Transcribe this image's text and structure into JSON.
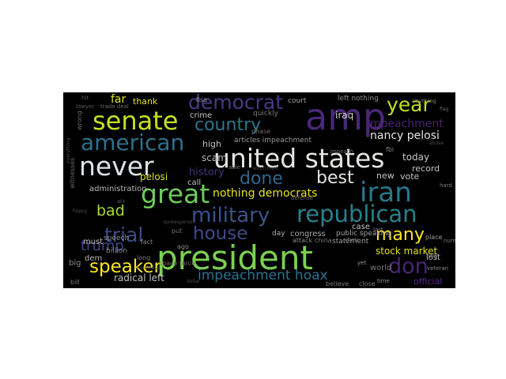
{
  "wordcloud": {
    "words": [
      {
        "text": "president",
        "color": "#7ad151"
      },
      {
        "text": "amp",
        "color": "#482878"
      },
      {
        "text": "united states",
        "color": "#e5e4e0"
      },
      {
        "text": "great",
        "color": "#6ccd5a"
      },
      {
        "text": "never",
        "color": "#dbe3e6"
      },
      {
        "text": "iran",
        "color": "#2a788e"
      },
      {
        "text": "senate",
        "color": "#c7e020"
      },
      {
        "text": "military",
        "color": "#3b528b"
      },
      {
        "text": "republican",
        "color": "#26828e"
      },
      {
        "text": "american",
        "color": "#2c718e"
      },
      {
        "text": "democrat",
        "color": "#443a83"
      },
      {
        "text": "country",
        "color": "#2a768e"
      },
      {
        "text": "house",
        "color": "#3e4a89"
      },
      {
        "text": "trial",
        "color": "#3e4c8a"
      },
      {
        "text": "don",
        "color": "#482475"
      },
      {
        "text": "year",
        "color": "#bddf26"
      },
      {
        "text": "done",
        "color": "#31668e"
      },
      {
        "text": "best",
        "color": "#e4e5e2"
      },
      {
        "text": "speaker",
        "color": "#fde725"
      },
      {
        "text": "many",
        "color": "#fde725"
      },
      {
        "text": "impeachment hoax",
        "color": "#2c728e"
      },
      {
        "text": "trump",
        "color": "#3f4889"
      },
      {
        "text": "bad",
        "color": "#a8db34"
      },
      {
        "text": "nancy pelosi",
        "color": "#e5e5e5"
      },
      {
        "text": "impeachment",
        "color": "#482173"
      },
      {
        "text": "nothing democrats",
        "color": "#e7e419"
      },
      {
        "text": "far",
        "color": "#dfe318"
      },
      {
        "text": "thank",
        "color": "#e3e419"
      },
      {
        "text": "stock market",
        "color": "#e5e419"
      },
      {
        "text": "radical left",
        "color": "#c3c3c3"
      },
      {
        "text": "history",
        "color": "#46337f"
      },
      {
        "text": "pelosi",
        "color": "#d8e219"
      },
      {
        "text": "iraq",
        "color": "#d1d1d1"
      },
      {
        "text": "crime",
        "color": "#c9c9c9"
      },
      {
        "text": "high",
        "color": "#c0c0c0"
      },
      {
        "text": "scam",
        "color": "#b7b7b7"
      },
      {
        "text": "today",
        "color": "#c9c9c9"
      },
      {
        "text": "record",
        "color": "#c4c4c4"
      },
      {
        "text": "new",
        "color": "#c7c7c7"
      },
      {
        "text": "vote",
        "color": "#c8c8c8"
      },
      {
        "text": "administration",
        "color": "#b8b8b8"
      },
      {
        "text": "must",
        "color": "#c5c5c5"
      },
      {
        "text": "dem",
        "color": "#b5b5b5"
      },
      {
        "text": "call",
        "color": "#c0c0c0"
      },
      {
        "text": "case",
        "color": "#c3c3c3"
      },
      {
        "text": "lost",
        "color": "#bbbbbb"
      },
      {
        "text": "official",
        "color": "#5b2a8a"
      },
      {
        "text": "congress",
        "color": "#a8a8a8"
      },
      {
        "text": "day",
        "color": "#b0b0b0"
      },
      {
        "text": "statement",
        "color": "#a0a0a0"
      },
      {
        "text": "public speaking",
        "color": "#a5a5a5"
      },
      {
        "text": "world",
        "color": "#7d7d7d"
      },
      {
        "text": "court",
        "color": "#a0a0a0"
      },
      {
        "text": "left nothing",
        "color": "#8e8e8e"
      },
      {
        "text": "articles impeachment",
        "color": "#9a9a9a"
      },
      {
        "text": "quickly",
        "color": "#7a7a7a"
      },
      {
        "text": "big",
        "color": "#8a8a8a"
      },
      {
        "text": "billion",
        "color": "#8a8a8a"
      },
      {
        "text": "speech",
        "color": "#8c8c8c"
      },
      {
        "text": "long",
        "color": "#7a7a7a"
      },
      {
        "text": "fact",
        "color": "#8a8a8a"
      },
      {
        "text": "space force",
        "color": "#6c6c6c"
      },
      {
        "text": "ago",
        "color": "#8a8a8a"
      },
      {
        "text": "put",
        "color": "#6f6f6f"
      },
      {
        "text": "fisa",
        "color": "#8a8a8a"
      },
      {
        "text": "phase",
        "color": "#707070"
      },
      {
        "text": "fbi",
        "color": "#8a8a8a"
      },
      {
        "text": "attack",
        "color": "#8a8a8a"
      },
      {
        "text": "china",
        "color": "#7a7a7a"
      },
      {
        "text": "whole",
        "color": "#6a6a6a"
      },
      {
        "text": "believe",
        "color": "#7a7a7a"
      },
      {
        "text": "close",
        "color": "#7a7a7a"
      },
      {
        "text": "fully",
        "color": "#9a9a9a"
      },
      {
        "text": "veteran",
        "color": "#8a8a8a"
      },
      {
        "text": "place",
        "color": "#9a9a9a"
      },
      {
        "text": "hard",
        "color": "#7a7a7a"
      },
      {
        "text": "number",
        "color": "#7a7a7a"
      },
      {
        "text": "time",
        "color": "#8a8a8a"
      },
      {
        "text": "last",
        "color": "#8a8a8a"
      },
      {
        "text": "yet",
        "color": "#9a9a9a"
      },
      {
        "text": "defense",
        "color": "#6a6a6a"
      },
      {
        "text": "impeach",
        "color": "#6a6a6a"
      },
      {
        "text": "bill",
        "color": "#7a7a7a"
      },
      {
        "text": "wrong",
        "color": "#6a6a6a"
      },
      {
        "text": "witnesses",
        "color": "#6a6a6a"
      },
      {
        "text": "trade deal",
        "color": "#6a6a6a"
      },
      {
        "text": "lawyer",
        "color": "#5a5a5a"
      },
      {
        "text": "hit",
        "color": "#5a5a5a"
      },
      {
        "text": "able",
        "color": "#7a7a7a"
      },
      {
        "text": "anything",
        "color": "#7a7a7a"
      },
      {
        "text": "flag",
        "color": "#6a6a6a"
      },
      {
        "text": "dollar",
        "color": "#4a4a4a"
      },
      {
        "text": "everything",
        "color": "#4a4a4a"
      },
      {
        "text": "happy",
        "color": "#4a4a4a"
      },
      {
        "text": "homeless",
        "color": "#4a4a4a"
      },
      {
        "text": "spokesperson",
        "color": "#4a4a4a"
      },
      {
        "text": "win",
        "color": "#5a5a5a"
      },
      {
        "text": "witch hunt",
        "color": "#4a4a4a"
      },
      {
        "text": "abuse",
        "color": "#4a4a4a"
      },
      {
        "text": "election",
        "color": "#3a3a3a"
      }
    ]
  }
}
